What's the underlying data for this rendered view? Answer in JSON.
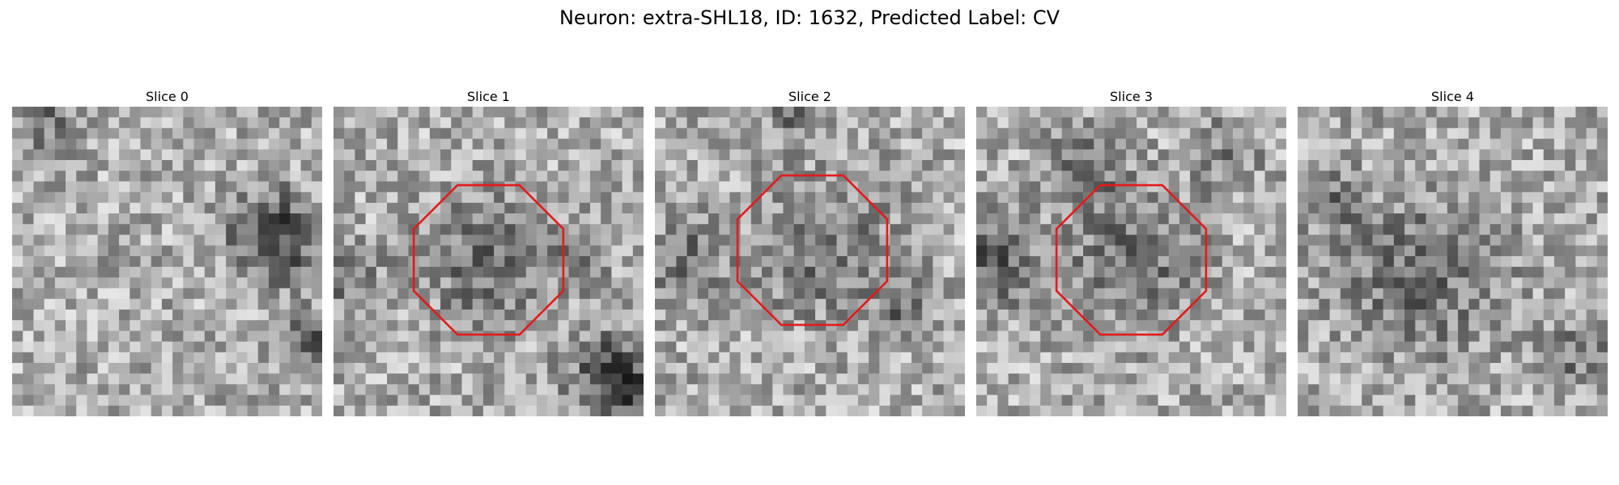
{
  "figure": {
    "title": "Neuron: extra-SHL18, ID: 1632, Predicted Label: CV"
  },
  "colors": {
    "roi_outline": "#e31a1c",
    "colormap": "grayscale"
  },
  "slices": [
    {
      "title": "Slice 0",
      "has_roi": false,
      "dark_blobs": [
        [
          0.85,
          0.42,
          0.14,
          0.95
        ],
        [
          0.95,
          0.75,
          0.08,
          0.8
        ],
        [
          0.1,
          0.05,
          0.08,
          0.6
        ]
      ],
      "seed": 11
    },
    {
      "title": "Slice 1",
      "has_roi": true,
      "dark_blobs": [
        [
          0.5,
          0.5,
          0.2,
          0.55
        ],
        [
          0.05,
          0.55,
          0.1,
          0.5
        ],
        [
          0.92,
          0.88,
          0.14,
          1.0
        ],
        [
          0.8,
          0.5,
          0.08,
          0.4
        ]
      ],
      "seed": 23
    },
    {
      "title": "Slice 2",
      "has_roi": true,
      "dark_blobs": [
        [
          0.55,
          0.45,
          0.22,
          0.5
        ],
        [
          0.1,
          0.5,
          0.12,
          0.55
        ],
        [
          0.8,
          0.65,
          0.08,
          0.55
        ],
        [
          0.45,
          0.02,
          0.1,
          0.45
        ]
      ],
      "seed": 37
    },
    {
      "title": "Slice 3",
      "has_roi": true,
      "dark_blobs": [
        [
          0.5,
          0.5,
          0.2,
          0.55
        ],
        [
          0.05,
          0.5,
          0.14,
          0.75
        ],
        [
          0.35,
          0.2,
          0.12,
          0.55
        ],
        [
          0.8,
          0.15,
          0.12,
          0.35
        ]
      ],
      "seed": 51
    },
    {
      "title": "Slice 4",
      "has_roi": false,
      "dark_blobs": [
        [
          0.4,
          0.55,
          0.25,
          0.55
        ],
        [
          0.1,
          0.3,
          0.1,
          0.5
        ],
        [
          0.9,
          0.8,
          0.12,
          0.45
        ]
      ],
      "seed": 67
    }
  ]
}
